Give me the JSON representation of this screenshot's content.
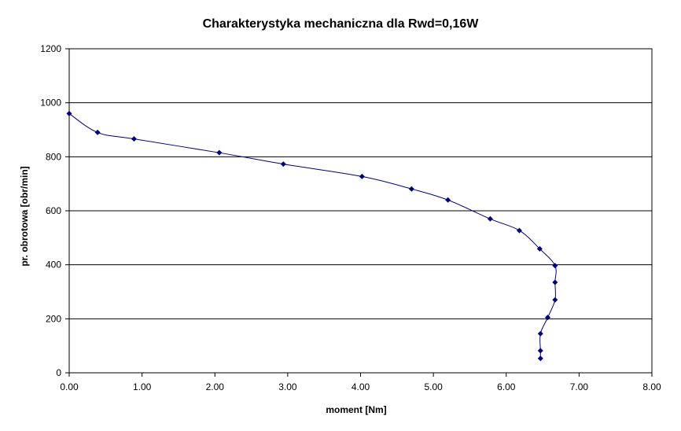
{
  "chart_data": {
    "type": "scatter",
    "title": "Charakterystyka mechaniczna dla Rwd=0,16W",
    "xlabel": "moment [Nm]",
    "ylabel": "pr. obrotowa [obr/min]",
    "xlim": [
      0,
      8
    ],
    "ylim": [
      0,
      1200
    ],
    "x_ticks": [
      "0.00",
      "1.00",
      "2.00",
      "3.00",
      "4.00",
      "5.00",
      "6.00",
      "7.00",
      "8.00"
    ],
    "y_ticks": [
      "0",
      "200",
      "400",
      "600",
      "800",
      "1000",
      "1200"
    ],
    "grid": "horizontal",
    "legend": "none",
    "series": [
      {
        "color": "#000080",
        "smooth": true,
        "x": [
          0.0,
          0.39,
          0.89,
          2.06,
          2.94,
          4.02,
          4.7,
          5.2,
          5.78,
          6.18,
          6.46,
          6.67,
          6.67,
          6.67,
          6.57,
          6.47,
          6.47,
          6.47
        ],
        "y": [
          960,
          890,
          866,
          815,
          773,
          727,
          681,
          640,
          570,
          527,
          459,
          397,
          335,
          270,
          205,
          145,
          82,
          53
        ]
      }
    ]
  }
}
